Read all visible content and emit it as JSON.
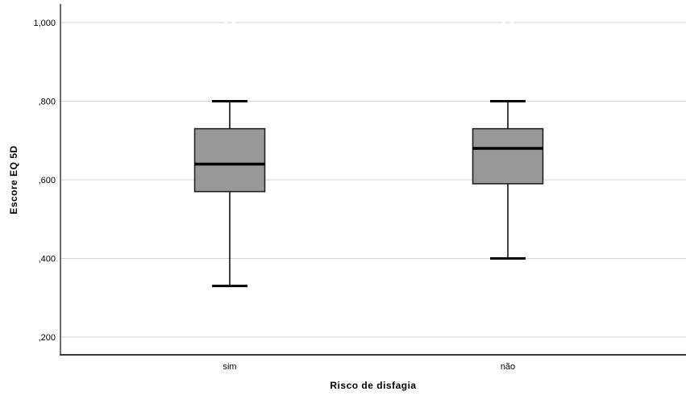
{
  "chart_data": {
    "type": "box",
    "title": "",
    "xlabel": "Risco de disfagia",
    "ylabel": "Escore EQ 5D",
    "categories": [
      "sim",
      "não"
    ],
    "series": [
      {
        "name": "sim",
        "whisker_low": 0.33,
        "q1": 0.57,
        "median": 0.64,
        "q3": 0.73,
        "whisker_high": 0.8,
        "outliers": [
          1.0
        ]
      },
      {
        "name": "não",
        "whisker_low": 0.4,
        "q1": 0.59,
        "median": 0.68,
        "q3": 0.73,
        "whisker_high": 0.8,
        "outliers": [
          1.0
        ]
      }
    ],
    "yticks": [
      {
        "value": 1.0,
        "label": "1,000"
      },
      {
        "value": 0.8,
        "label": ",800"
      },
      {
        "value": 0.6,
        "label": ",600"
      },
      {
        "value": 0.4,
        "label": ",400"
      },
      {
        "value": 0.2,
        "label": ",200"
      }
    ],
    "ylim": [
      0.155,
      1.047
    ],
    "grid": "horizontal",
    "legend": "none",
    "colors": {
      "box_fill": "#989898",
      "box_stroke": "#1a1a1a",
      "median": "#000000",
      "whisker": "#000000",
      "grid": "#d2d2d2",
      "axis": "#3a3a3a",
      "outlier_ring": "#ffffff",
      "text": "#000000",
      "background": "#ffffff"
    }
  }
}
